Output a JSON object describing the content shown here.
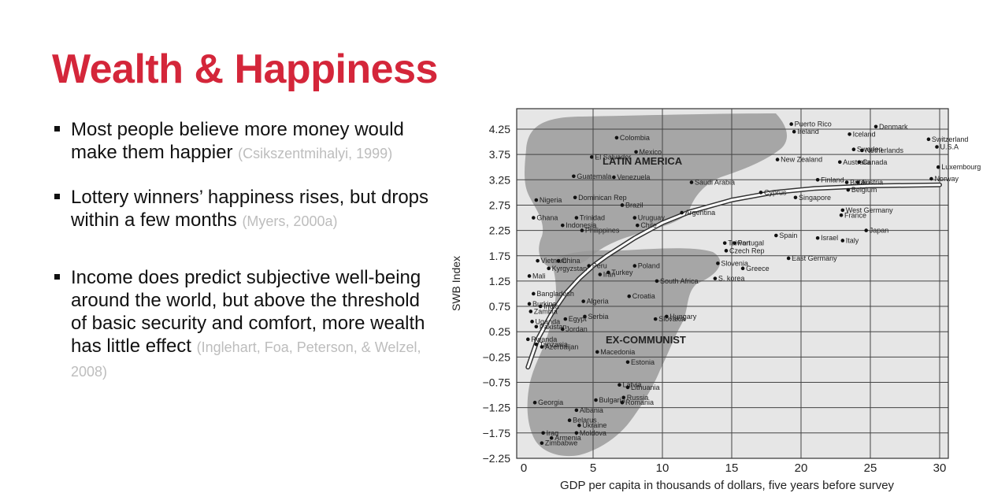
{
  "slide": {
    "title": "Wealth & Happiness",
    "bullets": [
      {
        "text": "Most people believe more money would make them happier",
        "citation": "(Csikszentmihalyi, 1999)"
      },
      {
        "text": "Lottery winners’ happiness rises, but drops within a few months",
        "citation": "(Myers, 2000a)"
      },
      {
        "text": "Income does predict subjective well-being around the world, but above the threshold of basic security and comfort, more wealth has little effect",
        "citation": "(Inglehart, Foa, Peterson, & Welzel, 2008)"
      }
    ]
  },
  "chart_data": {
    "type": "scatter",
    "title": "",
    "xlabel": "GDP per capita in thousands of dollars, five years before survey",
    "ylabel": "SWB Index",
    "xlim": [
      -1,
      31.5
    ],
    "ylim": [
      -2.25,
      4.75
    ],
    "x_ticks": [
      0,
      5,
      10,
      15,
      20,
      25,
      30
    ],
    "y_ticks": [
      4.25,
      3.75,
      3.25,
      2.75,
      2.25,
      1.75,
      1.25,
      0.75,
      0.25,
      -0.25,
      -0.75,
      -1.25,
      -1.75,
      -2.25
    ],
    "y_tick_labels": [
      "4.25",
      "3.75",
      "3.25",
      "2.75",
      "2.25",
      "1.75",
      "1.25",
      "0.75",
      "0.25",
      "−0.25",
      "−0.75",
      "−1.25",
      "−1.75",
      "−2.25"
    ],
    "grid": true,
    "regions": [
      "LATIN AMERICA",
      "EX-COMMUNIST"
    ],
    "trend": [
      [
        0.3,
        -0.45
      ],
      [
        1,
        0.1
      ],
      [
        2,
        0.6
      ],
      [
        3,
        1.0
      ],
      [
        4,
        1.3
      ],
      [
        5,
        1.55
      ],
      [
        6,
        1.75
      ],
      [
        8,
        2.1
      ],
      [
        10,
        2.4
      ],
      [
        12,
        2.62
      ],
      [
        15,
        2.85
      ],
      [
        18,
        3.0
      ],
      [
        21,
        3.08
      ],
      [
        25,
        3.13
      ],
      [
        30,
        3.15
      ]
    ],
    "points": [
      {
        "label": "Puerto Rico",
        "x": 19.3,
        "y": 4.35
      },
      {
        "label": "Denmark",
        "x": 25.4,
        "y": 4.3
      },
      {
        "label": "Iceland",
        "x": 23.5,
        "y": 4.15
      },
      {
        "label": "Ireland",
        "x": 19.5,
        "y": 4.2
      },
      {
        "label": "Switzerland",
        "x": 29.2,
        "y": 4.05
      },
      {
        "label": "Sweden",
        "x": 23.8,
        "y": 3.85
      },
      {
        "label": "Netherlands",
        "x": 24.4,
        "y": 3.83
      },
      {
        "label": "U.S.A",
        "x": 29.8,
        "y": 3.9
      },
      {
        "label": "Colombia",
        "x": 6.7,
        "y": 4.08
      },
      {
        "label": "Mexico",
        "x": 8.1,
        "y": 3.8
      },
      {
        "label": "El Salvador",
        "x": 4.9,
        "y": 3.7
      },
      {
        "label": "Guatemala",
        "x": 3.6,
        "y": 3.32
      },
      {
        "label": "Venezuela",
        "x": 6.5,
        "y": 3.3
      },
      {
        "label": "New Zealand",
        "x": 18.3,
        "y": 3.65
      },
      {
        "label": "Australia",
        "x": 22.8,
        "y": 3.6
      },
      {
        "label": "Canada",
        "x": 24.2,
        "y": 3.6
      },
      {
        "label": "Luxembourg",
        "x": 29.9,
        "y": 3.5
      },
      {
        "label": "Finland",
        "x": 21.2,
        "y": 3.25
      },
      {
        "label": "Britain",
        "x": 23.3,
        "y": 3.2
      },
      {
        "label": "Austria",
        "x": 24.1,
        "y": 3.2
      },
      {
        "label": "Norway",
        "x": 29.4,
        "y": 3.27
      },
      {
        "label": "Nigeria",
        "x": 0.9,
        "y": 2.85
      },
      {
        "label": "Dominican Rep",
        "x": 3.7,
        "y": 2.9
      },
      {
        "label": "Brazil",
        "x": 7.1,
        "y": 2.75
      },
      {
        "label": "Saudi Arabia",
        "x": 12.1,
        "y": 3.2
      },
      {
        "label": "Cyprus",
        "x": 17.1,
        "y": 3.0
      },
      {
        "label": "Singapore",
        "x": 19.6,
        "y": 2.9
      },
      {
        "label": "Belgium",
        "x": 23.4,
        "y": 3.05
      },
      {
        "label": "Ghana",
        "x": 0.7,
        "y": 2.5
      },
      {
        "label": "Trinidad",
        "x": 3.8,
        "y": 2.5
      },
      {
        "label": "Uruguay",
        "x": 8.0,
        "y": 2.5
      },
      {
        "label": "Argentina",
        "x": 11.4,
        "y": 2.6
      },
      {
        "label": "West Germany",
        "x": 23.0,
        "y": 2.65
      },
      {
        "label": "France",
        "x": 22.9,
        "y": 2.55
      },
      {
        "label": "Japan",
        "x": 24.7,
        "y": 2.25
      },
      {
        "label": "Indonesia",
        "x": 2.8,
        "y": 2.35
      },
      {
        "label": "Philippines",
        "x": 4.2,
        "y": 2.25
      },
      {
        "label": "Chile",
        "x": 8.2,
        "y": 2.35
      },
      {
        "label": "Taiwan",
        "x": 14.5,
        "y": 2.0
      },
      {
        "label": "Portugal",
        "x": 15.2,
        "y": 2.0
      },
      {
        "label": "Spain",
        "x": 18.2,
        "y": 2.15
      },
      {
        "label": "Israel",
        "x": 21.2,
        "y": 2.1
      },
      {
        "label": "Italy",
        "x": 23.0,
        "y": 2.05
      },
      {
        "label": "Vietnam",
        "x": 1.0,
        "y": 1.65
      },
      {
        "label": "China",
        "x": 2.5,
        "y": 1.65
      },
      {
        "label": "Peru",
        "x": 4.7,
        "y": 1.55
      },
      {
        "label": "Kyrgyzstan",
        "x": 1.8,
        "y": 1.5
      },
      {
        "label": "Mali",
        "x": 0.4,
        "y": 1.35
      },
      {
        "label": "Iran",
        "x": 5.5,
        "y": 1.38
      },
      {
        "label": "Turkey",
        "x": 6.1,
        "y": 1.42
      },
      {
        "label": "Poland",
        "x": 8.0,
        "y": 1.55
      },
      {
        "label": "South Africa",
        "x": 9.6,
        "y": 1.25
      },
      {
        "label": "Czech Rep",
        "x": 14.6,
        "y": 1.85
      },
      {
        "label": "Slovenia",
        "x": 14.0,
        "y": 1.6
      },
      {
        "label": "Greece",
        "x": 15.8,
        "y": 1.5
      },
      {
        "label": "S. korea",
        "x": 13.8,
        "y": 1.3
      },
      {
        "label": "East Germany",
        "x": 19.1,
        "y": 1.7
      },
      {
        "label": "Bangladesh",
        "x": 0.7,
        "y": 1.0
      },
      {
        "label": "Burkina",
        "x": 0.4,
        "y": 0.8
      },
      {
        "label": "India",
        "x": 1.2,
        "y": 0.75
      },
      {
        "label": "Algeria",
        "x": 4.3,
        "y": 0.85
      },
      {
        "label": "Croatia",
        "x": 7.6,
        "y": 0.95
      },
      {
        "label": "Zambia",
        "x": 0.5,
        "y": 0.65
      },
      {
        "label": "Egypt",
        "x": 3.0,
        "y": 0.5
      },
      {
        "label": "Serbia",
        "x": 4.4,
        "y": 0.55
      },
      {
        "label": "Hungary",
        "x": 10.3,
        "y": 0.55
      },
      {
        "label": "Uganda",
        "x": 0.6,
        "y": 0.45
      },
      {
        "label": "Pakistan",
        "x": 0.9,
        "y": 0.35
      },
      {
        "label": "Jordan",
        "x": 2.8,
        "y": 0.3
      },
      {
        "label": "Slovakia",
        "x": 9.5,
        "y": 0.5
      },
      {
        "label": "Rwanda",
        "x": 0.3,
        "y": 0.1
      },
      {
        "label": "Tanzania",
        "x": 0.9,
        "y": 0.0
      },
      {
        "label": "Azerbaijan",
        "x": 1.3,
        "y": -0.05
      },
      {
        "label": "Macedonia",
        "x": 5.3,
        "y": -0.15
      },
      {
        "label": "Estonia",
        "x": 7.5,
        "y": -0.35
      },
      {
        "label": "Latvia",
        "x": 6.9,
        "y": -0.8
      },
      {
        "label": "Lithuania",
        "x": 7.5,
        "y": -0.85
      },
      {
        "label": "Russia",
        "x": 7.2,
        "y": -1.05
      },
      {
        "label": "Georgia",
        "x": 0.8,
        "y": -1.15
      },
      {
        "label": "Bulgaria",
        "x": 5.2,
        "y": -1.1
      },
      {
        "label": "Romania",
        "x": 7.1,
        "y": -1.15
      },
      {
        "label": "Albania",
        "x": 3.8,
        "y": -1.3
      },
      {
        "label": "Belarus",
        "x": 3.3,
        "y": -1.5
      },
      {
        "label": "Ukraine",
        "x": 4.0,
        "y": -1.6
      },
      {
        "label": "Iraq",
        "x": 1.4,
        "y": -1.75
      },
      {
        "label": "Moldova",
        "x": 3.8,
        "y": -1.75
      },
      {
        "label": "Armenia",
        "x": 2.0,
        "y": -1.85
      },
      {
        "label": "Zimbabwe",
        "x": 1.3,
        "y": -1.95
      }
    ]
  }
}
